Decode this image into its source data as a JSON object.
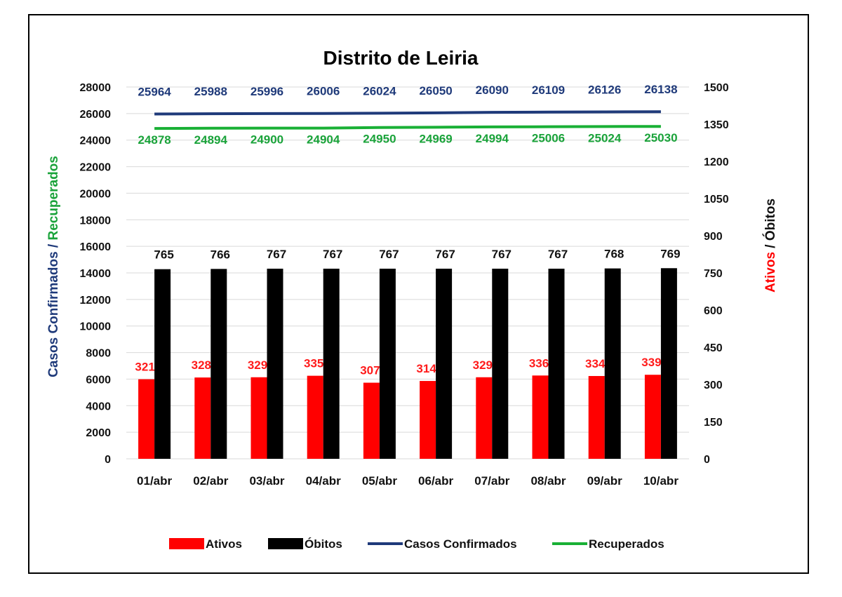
{
  "chart_data": {
    "type": "bar",
    "title": "Distrito de Leiria",
    "categories": [
      "01/abr",
      "02/abr",
      "03/abr",
      "04/abr",
      "05/abr",
      "06/abr",
      "07/abr",
      "08/abr",
      "09/abr",
      "10/abr"
    ],
    "left_axis": {
      "label_part1": "Casos Confirmados",
      "label_sep": " / ",
      "label_part2": "Recuperados",
      "label_part1_color": "#1f3a7a",
      "label_part2_color": "#1aa33a",
      "ylim": [
        0,
        28000
      ],
      "ticks": [
        0,
        2000,
        4000,
        6000,
        8000,
        10000,
        12000,
        14000,
        16000,
        18000,
        20000,
        22000,
        24000,
        26000,
        28000
      ]
    },
    "right_axis": {
      "label_part1": "Ativos",
      "label_sep": " / ",
      "label_part2": "Óbitos",
      "label_part1_color": "#ff0000",
      "label_part2_color": "#111111",
      "ylim": [
        0,
        1500
      ],
      "ticks": [
        0,
        150,
        300,
        450,
        600,
        750,
        900,
        1050,
        1200,
        1350,
        1500
      ]
    },
    "series": [
      {
        "name": "Ativos",
        "kind": "bar",
        "axis": "right",
        "color": "#ff0000",
        "label_color": "#ff1a1a",
        "values": [
          321,
          328,
          329,
          335,
          307,
          314,
          329,
          336,
          334,
          339
        ]
      },
      {
        "name": "Óbitos",
        "kind": "bar",
        "axis": "right",
        "color": "#000000",
        "label_color": "#111111",
        "values": [
          765,
          766,
          767,
          767,
          767,
          767,
          767,
          767,
          768,
          769
        ]
      },
      {
        "name": "Casos Confirmados",
        "kind": "line",
        "axis": "left",
        "color": "#1f3a7a",
        "label_color": "#1f3a7a",
        "values": [
          25964,
          25988,
          25996,
          26006,
          26024,
          26050,
          26090,
          26109,
          26126,
          26138
        ]
      },
      {
        "name": "Recuperados",
        "kind": "line",
        "axis": "left",
        "color": "#19b035",
        "label_color": "#1aa33a",
        "values": [
          24878,
          24894,
          24900,
          24904,
          24950,
          24969,
          24994,
          25006,
          25024,
          25030
        ]
      }
    ],
    "grid": true,
    "legend_position": "bottom"
  }
}
